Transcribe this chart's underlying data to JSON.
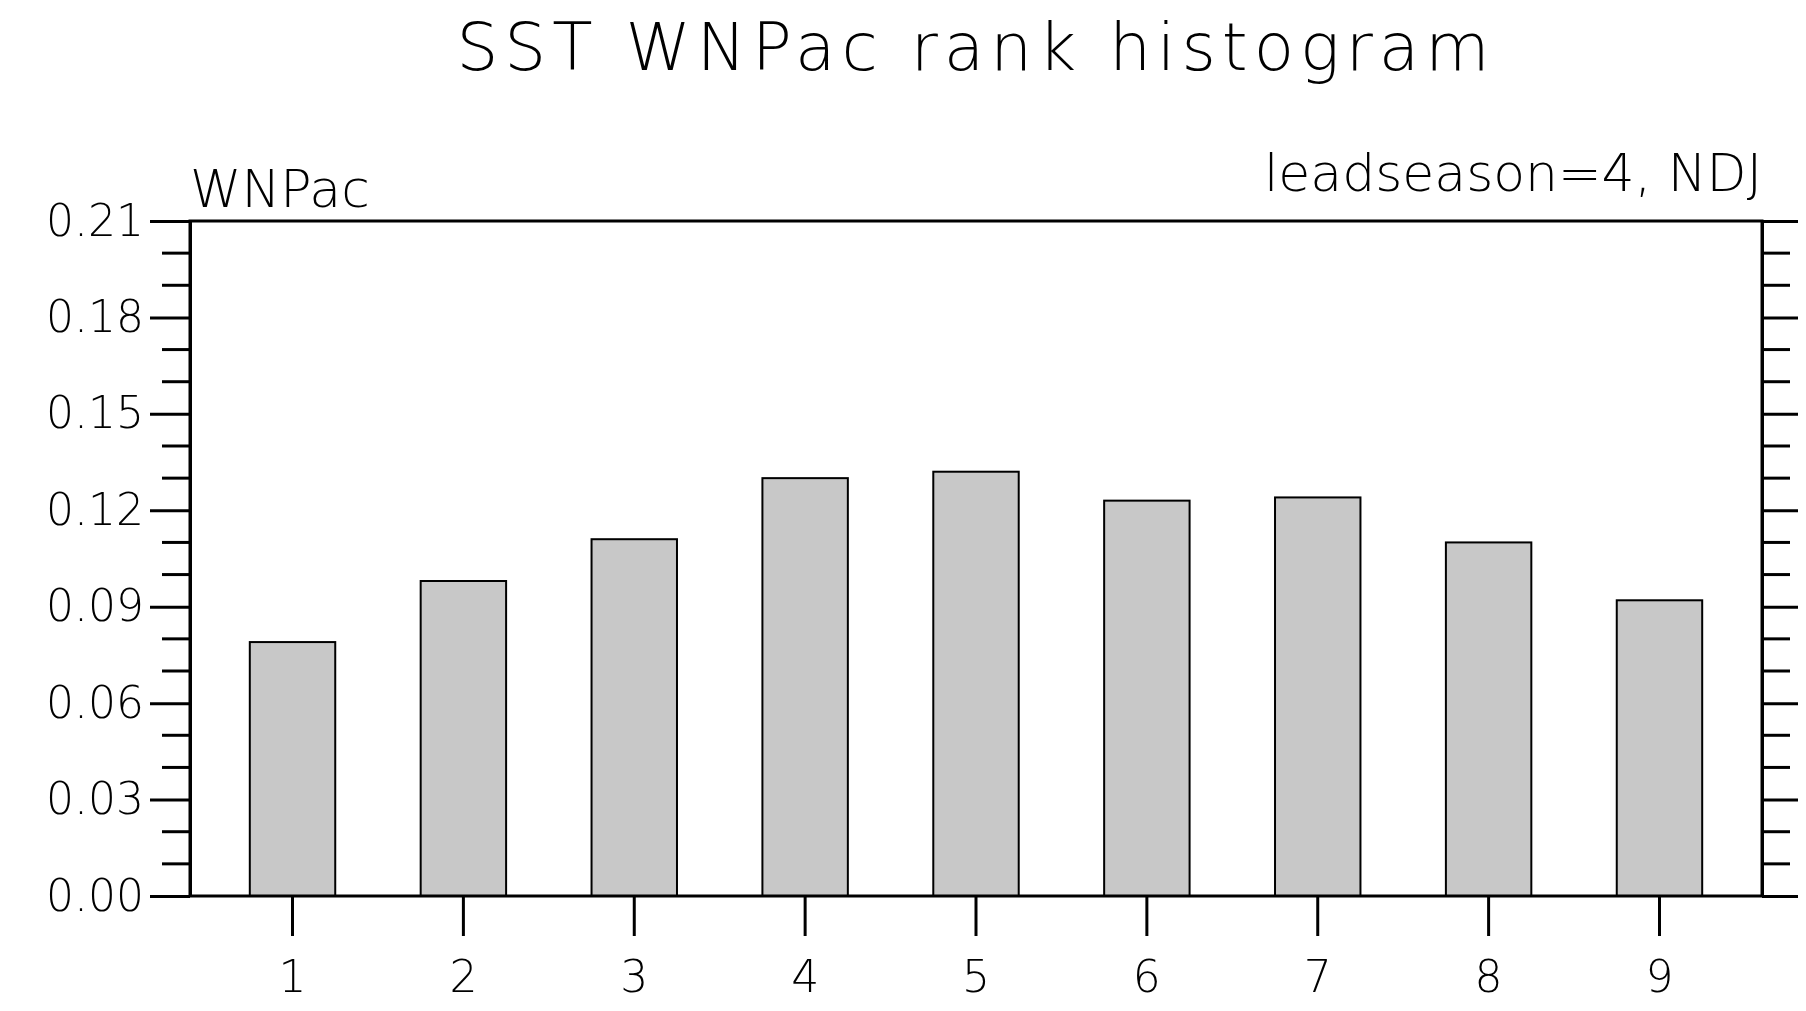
{
  "chart_data": {
    "type": "bar",
    "title": "SST WNPac rank histogram",
    "annotations": [
      "WNPac",
      "leadseason=4, NDJ"
    ],
    "categories": [
      "1",
      "2",
      "3",
      "4",
      "5",
      "6",
      "7",
      "8",
      "9"
    ],
    "values": [
      0.079,
      0.098,
      0.111,
      0.13,
      0.132,
      0.123,
      0.124,
      0.11,
      0.092
    ],
    "color": "#c8c8c8",
    "ylim": [
      0,
      0.21
    ],
    "yticks": [
      {
        "value": 0,
        "label": "0.00"
      },
      {
        "value": 0.03,
        "label": "0.03"
      },
      {
        "value": 0.06,
        "label": "0.06"
      },
      {
        "value": 0.09,
        "label": "0.09"
      },
      {
        "value": 0.12,
        "label": "0.12"
      },
      {
        "value": 0.15,
        "label": "0.15"
      },
      {
        "value": 0.18,
        "label": "0.18"
      },
      {
        "value": 0.21,
        "label": "0.21"
      }
    ],
    "grid": false
  }
}
